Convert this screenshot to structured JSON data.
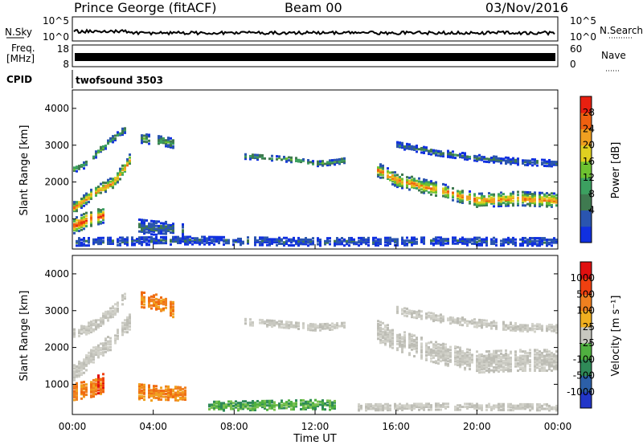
{
  "header": {
    "station": "Prince George (fitACF)",
    "beam": "Beam 00",
    "date": "03/Nov/2016"
  },
  "top_panels": {
    "nsky_label": "N.Sky",
    "nsky_ticks": [
      "10^5",
      "10^0"
    ],
    "nsearch_label": "N.Search",
    "nsearch_ticks": [
      "10^5",
      "10^0"
    ],
    "freq_label_1": "Freq.",
    "freq_label_2": "[MHz]",
    "freq_ticks": [
      "18",
      "8"
    ],
    "nave_label": "Nave",
    "nave_ticks": [
      "60",
      "0"
    ],
    "cpid_label": "CPID",
    "cpid_value": "twofsound 3503"
  },
  "chart_data": [
    {
      "type": "heatmap",
      "title": "",
      "xlabel": "Time UT",
      "ylabel": "Slant Range [km]",
      "colorbar_label": "Power [dB]",
      "x_range": [
        "00:00",
        "00:00"
      ],
      "ylim": [
        180,
        4500
      ],
      "y_ticks": [
        1000,
        2000,
        3000,
        4000
      ],
      "x_ticks": [
        "00:00",
        "04:00",
        "08:00",
        "12:00",
        "16:00",
        "20:00",
        "00:00"
      ],
      "colorbar_ticks": [
        "28",
        "24",
        "20",
        "16",
        "12",
        "8",
        "4"
      ],
      "colorbar_range": [
        0,
        32
      ],
      "colorbar_colors": [
        "#1030e0",
        "#2a55b0",
        "#3f7a50",
        "#3ca060",
        "#6ec230",
        "#e0d020",
        "#f0a020",
        "#f06010",
        "#e82010"
      ],
      "bands": [
        {
          "name": "band-1",
          "t": [
            0.0,
            0.3,
            1.0,
            2.0,
            2.7,
            2.9
          ],
          "center_km": [
            1300,
            1400,
            1700,
            2000,
            2500,
            2750
          ],
          "half_width_km": 140,
          "peak_db": 26
        },
        {
          "name": "band-2",
          "t": [
            0.0,
            0.5,
            1.0,
            1.5,
            2.0,
            2.6
          ],
          "center_km": [
            2350,
            2450,
            2700,
            2950,
            3200,
            3450
          ],
          "half_width_km": 90,
          "peak_db": 14
        },
        {
          "name": "band-3",
          "t": [
            0.0,
            0.4,
            0.8,
            1.2,
            1.5
          ],
          "center_km": [
            800,
            900,
            1000,
            1050,
            1100
          ],
          "half_width_km": 200,
          "peak_db": 30
        },
        {
          "name": "band-4",
          "t": [
            3.3,
            4.0,
            4.6,
            5.0
          ],
          "center_km": [
            3200,
            3150,
            3100,
            3050
          ],
          "half_width_km": 130,
          "peak_db": 14
        },
        {
          "name": "band-5",
          "t": [
            3.2,
            4.0,
            5.0,
            5.6
          ],
          "center_km": [
            800,
            750,
            720,
            700
          ],
          "half_width_km": 180,
          "peak_db": 8
        },
        {
          "name": "band-6",
          "t": [
            8.5,
            10.0,
            11.0,
            12.0,
            13.0,
            13.5
          ],
          "center_km": [
            2700,
            2650,
            2600,
            2500,
            2550,
            2600
          ],
          "half_width_km": 70,
          "peak_db": 14
        },
        {
          "name": "band-7",
          "t": [
            15.0,
            16.0,
            18.0,
            20.0,
            22.0,
            24.0
          ],
          "center_km": [
            2350,
            2050,
            1800,
            1500,
            1550,
            1500
          ],
          "half_width_km": 180,
          "peak_db": 26
        },
        {
          "name": "band-8",
          "t": [
            16.0,
            18.0,
            20.0,
            22.0,
            24.0
          ],
          "center_km": [
            3000,
            2800,
            2650,
            2550,
            2500
          ],
          "half_width_km": 80,
          "peak_db": 8
        },
        {
          "name": "band-9",
          "t": [
            0.0,
            6.0,
            12.0,
            18.0,
            24.0
          ],
          "center_km": [
            380,
            420,
            380,
            400,
            380
          ],
          "half_width_km": 110,
          "peak_db": 6
        }
      ]
    },
    {
      "type": "heatmap",
      "title": "",
      "xlabel": "Time UT",
      "ylabel": "Slant Range [km]",
      "colorbar_label": "Velocity [m s⁻¹]",
      "x_range": [
        "00:00",
        "00:00"
      ],
      "ylim": [
        180,
        4500
      ],
      "y_ticks": [
        1000,
        2000,
        3000,
        4000
      ],
      "x_ticks": [
        "00:00",
        "04:00",
        "08:00",
        "12:00",
        "16:00",
        "20:00",
        "00:00"
      ],
      "colorbar_ticks": [
        "1000",
        "500",
        "100",
        "25",
        "-25",
        "-100",
        "-500",
        "-1000"
      ],
      "colorbar_colors": [
        "#2236c8",
        "#2c5fa8",
        "#2f8a58",
        "#50b040",
        "#c8c8c0",
        "#f0b020",
        "#f08020",
        "#f04010",
        "#e01010"
      ],
      "bands": [
        {
          "name": "ground-scatter-1",
          "t": [
            0.0,
            0.5,
            1.0,
            2.0,
            2.8
          ],
          "center_km": [
            1300,
            1500,
            1800,
            2200,
            2700
          ],
          "half_width_km": 200,
          "velocity_class": "gray"
        },
        {
          "name": "ground-scatter-2",
          "t": [
            0.0,
            1.0,
            2.0,
            2.6
          ],
          "center_km": [
            2350,
            2600,
            3000,
            3400
          ],
          "half_width_km": 150,
          "velocity_class": "gray"
        },
        {
          "name": "ground-scatter-3",
          "t": [
            8.5,
            10.0,
            12.0,
            13.5
          ],
          "center_km": [
            2700,
            2650,
            2550,
            2600
          ],
          "half_width_km": 90,
          "velocity_class": "gray"
        },
        {
          "name": "ground-scatter-4",
          "t": [
            15.0,
            16.5,
            18.0,
            20.0,
            22.0,
            24.0
          ],
          "center_km": [
            2450,
            2100,
            1850,
            1600,
            1650,
            1650
          ],
          "half_width_km": 280,
          "velocity_class": "gray"
        },
        {
          "name": "ground-scatter-5",
          "t": [
            16.0,
            18.0,
            20.0,
            22.0,
            24.0
          ],
          "center_km": [
            3000,
            2800,
            2650,
            2550,
            2500
          ],
          "half_width_km": 100,
          "velocity_class": "gray"
        },
        {
          "name": "negative-flow-1",
          "t": [
            0.0,
            0.5,
            1.0,
            1.5
          ],
          "center_km": [
            800,
            850,
            900,
            1000
          ],
          "half_width_km": 230,
          "velocity_class": "orange"
        },
        {
          "name": "negative-flow-2",
          "t": [
            1.2,
            1.5
          ],
          "center_km": [
            1000,
            1050
          ],
          "half_width_km": 250,
          "velocity_class": "red"
        },
        {
          "name": "negative-flow-3",
          "t": [
            3.3,
            4.0,
            4.6,
            5.0
          ],
          "center_km": [
            3300,
            3250,
            3150,
            3000
          ],
          "half_width_km": 200,
          "velocity_class": "orange"
        },
        {
          "name": "negative-flow-4",
          "t": [
            3.2,
            4.0,
            5.0,
            5.6
          ],
          "center_km": [
            800,
            750,
            730,
            700
          ],
          "half_width_km": 200,
          "velocity_class": "orange"
        },
        {
          "name": "positive-flow-1",
          "t": [
            6.5,
            9.0,
            11.0,
            12.0,
            13.0
          ],
          "center_km": [
            400,
            420,
            440,
            450,
            420
          ],
          "half_width_km": 120,
          "velocity_class": "green"
        },
        {
          "name": "low-scatter-1",
          "t": [
            14.0,
            18.0,
            24.0
          ],
          "center_km": [
            380,
            400,
            380
          ],
          "half_width_km": 90,
          "velocity_class": "gray"
        }
      ]
    }
  ]
}
